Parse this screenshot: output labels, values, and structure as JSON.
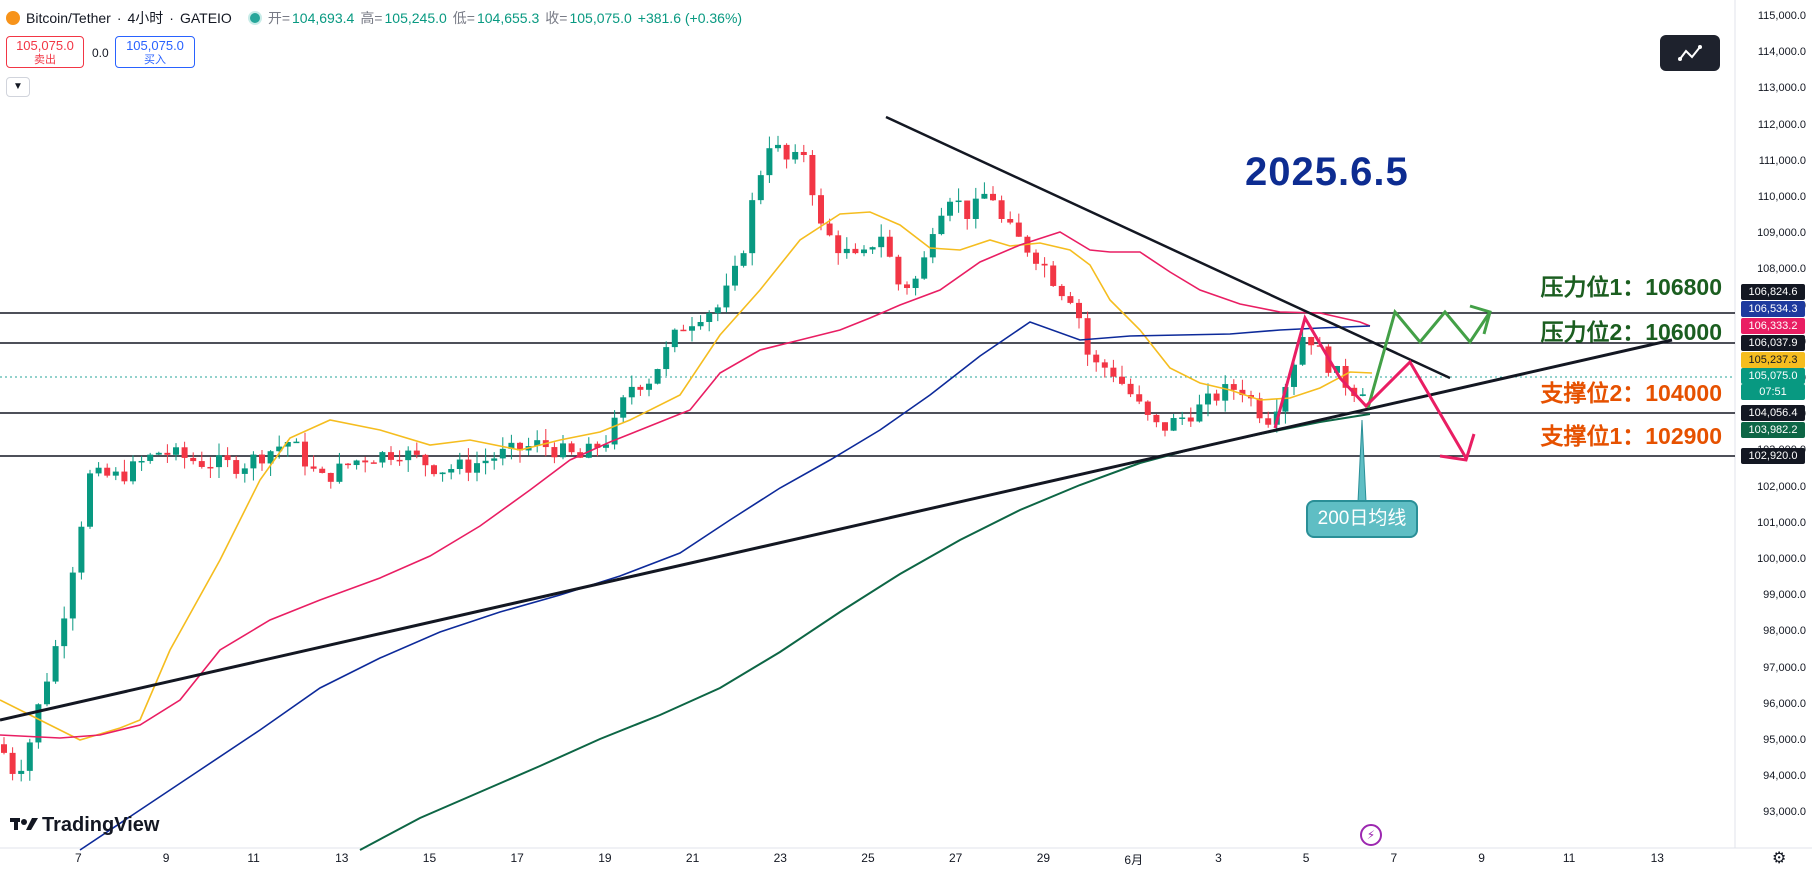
{
  "header": {
    "symbol": "Bitcoin/Tether",
    "timeframe": "4小时",
    "exchange": "GATEIO",
    "open_label": "开=",
    "open": "104,693.4",
    "high_label": "高=",
    "high": "105,245.0",
    "low_label": "低=",
    "low": "104,655.3",
    "close_label": "收=",
    "close": "105,075.0",
    "change": "+381.6 (+0.36%)"
  },
  "trade": {
    "sell_price": "105,075.0",
    "sell_label": "卖出",
    "spread": "0.0",
    "buy_price": "105,075.0",
    "buy_label": "买入"
  },
  "annotation": {
    "date": "2025.6.5",
    "resistance1": "压力位1：106800",
    "resistance2": "压力位2：106000",
    "support2": "支撑位2：104000",
    "support1": "支撑位1：102900",
    "ma200_label": "200日均线"
  },
  "colors": {
    "up": "#089981",
    "down": "#f23645",
    "ma_short": "#f5bd1f",
    "ma_mid": "#e91e63",
    "ma_long_blue": "#0d2a9a",
    "ma_200": "#0d6645",
    "resistance_text": "#1b5e20",
    "support_text": "#e65100",
    "date_text": "#0d2c91"
  },
  "price_axis": [
    "115,000.0",
    "114,000.0",
    "113,000.0",
    "112,000.0",
    "111,000.0",
    "110,000.0",
    "109,000.0",
    "108,000.0",
    "107,000.0",
    "106,000.0",
    "105,000.0",
    "104,000.0",
    "103,000.0",
    "102,000.0",
    "101,000.0",
    "100,000.0",
    "99,000.0",
    "98,000.0",
    "97,000.0",
    "96,000.0",
    "95,000.0",
    "94,000.0",
    "93,000.0"
  ],
  "time_axis": [
    "7",
    "9",
    "11",
    "13",
    "15",
    "17",
    "19",
    "21",
    "23",
    "25",
    "27",
    "29",
    "6月",
    "3",
    "5",
    "7",
    "9",
    "11",
    "13"
  ],
  "price_tags": [
    {
      "value": "106,824.6",
      "color": "#131722"
    },
    {
      "value": "106,534.3",
      "color": "#1e3a9e"
    },
    {
      "value": "106,333.2",
      "color": "#e91e63"
    },
    {
      "value": "106,037.9",
      "color": "#131722"
    },
    {
      "value": "105,237.3",
      "color": "#f5bd1f"
    },
    {
      "value": "105,075.0",
      "color": "#089981"
    },
    {
      "value": "07:51",
      "color": "#089981"
    },
    {
      "value": "104,056.4",
      "color": "#131722"
    },
    {
      "value": "103,982.2",
      "color": "#0d6645"
    },
    {
      "value": "102,920.0",
      "color": "#131722"
    }
  ],
  "branding": {
    "logo": "TradingView"
  },
  "icons": {
    "coin": "bitcoin-icon",
    "status": "market-open-icon",
    "draw": "drawing-tool-icon",
    "bolt": "lightning-icon",
    "gear": "settings-icon"
  }
}
